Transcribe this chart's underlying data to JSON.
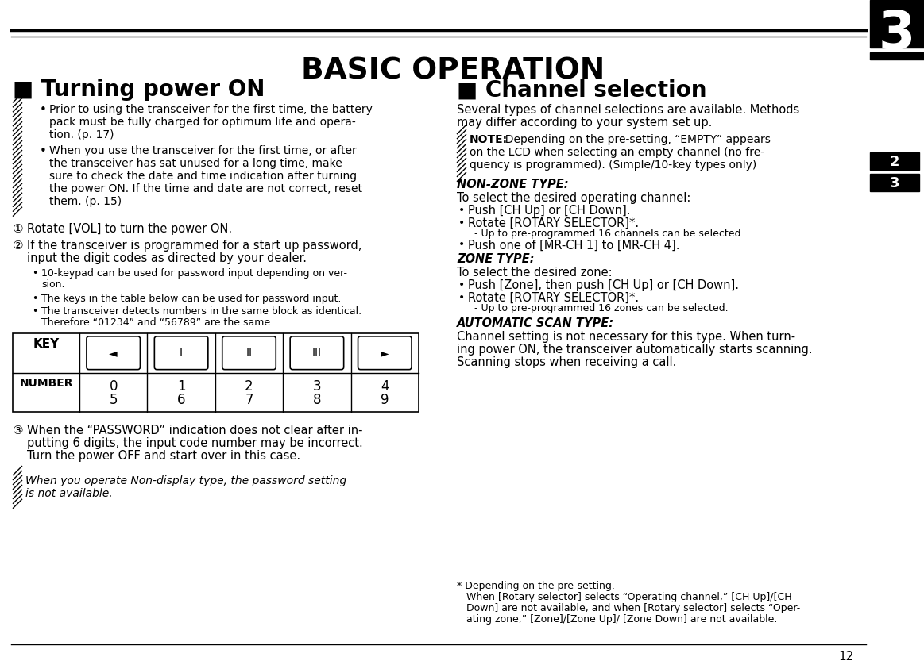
{
  "title": "BASIC OPERATION",
  "chapter_num": "3",
  "page_num": "12",
  "sidebar_chapters": [
    "2",
    "3"
  ],
  "bg_color": "#ffffff",
  "left_column": {
    "section_title": "■ Turning power ON",
    "bullet1_lines": [
      "Prior to using the transceiver for the first time, the battery",
      "pack must be fully charged for optimum life and opera-",
      "tion. (p. 17)"
    ],
    "bullet2_lines": [
      "When you use the transceiver for the first time, or after",
      "the transceiver has sat unused for a long time, make",
      "sure to check the date and time indication after turning",
      "the power ON. If the time and date are not correct, reset",
      "them. (p. 15)"
    ],
    "step1_text": "Rotate [VOL] to turn the power ON.",
    "step2_line1": "If the transceiver is programmed for a start up password,",
    "step2_line2": "input the digit codes as directed by your dealer.",
    "sub1_lines": [
      "10-keypad can be used for password input depending on ver-",
      "sion."
    ],
    "sub2_line": "The keys in the table below can be used for password input.",
    "sub3_lines": [
      "The transceiver detects numbers in the same block as identical.",
      "Therefore “01234” and “56789” are the same."
    ],
    "table_key_label": "KEY",
    "table_number_label": "NUMBER",
    "numbers_top": [
      "0",
      "1",
      "2",
      "3",
      "4"
    ],
    "numbers_bot": [
      "5",
      "6",
      "7",
      "8",
      "9"
    ],
    "step3_lines": [
      "When the “PASSWORD” indication does not clear after in-",
      "putting 6 digits, the input code number may be incorrect.",
      "Turn the power OFF and start over in this case."
    ],
    "note_lines": [
      "When you operate Non-display type, the password setting",
      "is not available."
    ]
  },
  "right_column": {
    "section_title": "■ Channel selection",
    "intro_lines": [
      "Several types of channel selections are available. Methods",
      "may differ according to your system set up."
    ],
    "note_lines": [
      "NOTE:  Depending on the pre-setting, “EMPTY” appears",
      "on the LCD when selecting an empty channel (no fre-",
      "quency is programmed). (Simple/10-key types only)"
    ],
    "nz_title": "NON-ZONE TYPE:",
    "nz_intro": "To select the desired operating channel:",
    "nz_b1": "Push [CH Up] or [CH Down].",
    "nz_b2a": "Rotate [ROTARY SELECTOR]*.",
    "nz_b2b": "  - Up to pre-programmed 16 channels can be selected.",
    "nz_b3": "Push one of [MR-CH 1] to [MR-CH 4].",
    "z_title": "ZONE TYPE:",
    "z_intro": "To select the desired zone:",
    "z_b1": "Push [Zone], then push [CH Up] or [CH Down].",
    "z_b2a": "Rotate [ROTARY SELECTOR]*.",
    "z_b2b": "  - Up to pre-programmed 16 zones can be selected.",
    "asc_title": "AUTOMATIC SCAN TYPE:",
    "asc_lines": [
      "Channel setting is not necessary for this type. When turn-",
      "ing power ON, the transceiver automatically starts scanning.",
      "Scanning stops when receiving a call."
    ],
    "fn_lines": [
      "* Depending on the pre-setting.",
      "   When [Rotary selector] selects “Operating channel,” [CH Up]/[CH",
      "   Down] are not available, and when [Rotary selector] selects “Oper-",
      "   ating zone,” [Zone]/[Zone Up]/ [Zone Down] are not available."
    ]
  }
}
